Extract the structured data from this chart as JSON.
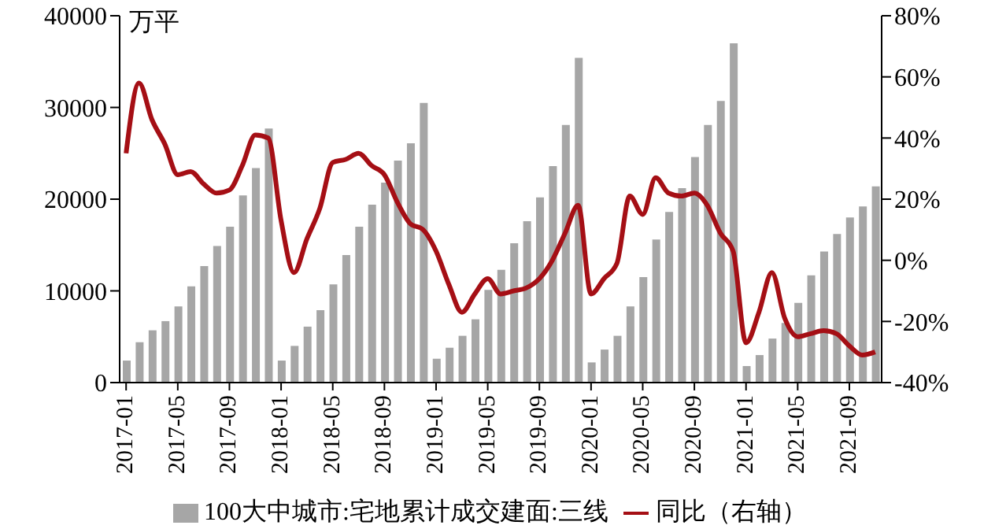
{
  "chart_data": {
    "type": "bar",
    "ylabel": "万平",
    "categories": [
      "2017-01",
      null,
      null,
      null,
      "2017-05",
      null,
      null,
      null,
      "2017-09",
      null,
      null,
      null,
      "2018-01",
      null,
      null,
      null,
      "2018-05",
      null,
      null,
      null,
      "2018-09",
      null,
      null,
      null,
      "2019-01",
      null,
      null,
      null,
      "2019-05",
      null,
      null,
      null,
      "2019-09",
      null,
      null,
      null,
      "2020-01",
      null,
      null,
      null,
      "2020-05",
      null,
      null,
      null,
      "2020-09",
      null,
      null,
      null,
      "2021-01",
      null,
      null,
      null,
      "2021-05",
      null,
      null,
      null,
      "2021-09",
      null,
      null
    ],
    "series": [
      {
        "name": "100大中城市:宅地累计成交建面:三线",
        "color": "#a6a6a6",
        "values": [
          2400,
          4400,
          5700,
          6700,
          8300,
          10500,
          12700,
          14900,
          17000,
          20400,
          23400,
          27700,
          2400,
          4000,
          6100,
          7900,
          10700,
          13900,
          17000,
          19400,
          21800,
          24200,
          26100,
          30500,
          2600,
          3800,
          5100,
          6900,
          10100,
          12300,
          15200,
          17600,
          20200,
          23600,
          28100,
          35400,
          2200,
          3600,
          5100,
          8300,
          11500,
          15600,
          18600,
          21200,
          24600,
          28100,
          30700,
          37000,
          1800,
          3000,
          4800,
          6500,
          8700,
          11700,
          14300,
          16200,
          18000,
          19200,
          21400
        ]
      },
      {
        "name": "同比（右轴）",
        "type": "line",
        "axis": "y2",
        "color": "#a50f15",
        "values": [
          35,
          58,
          46,
          38,
          28,
          29,
          25,
          22,
          23,
          31,
          41,
          40,
          13,
          -4,
          7,
          17,
          32,
          33,
          35,
          31,
          28,
          19,
          12,
          10,
          3,
          -8,
          -17,
          -11,
          -6,
          -11,
          -10,
          -9,
          -6,
          0,
          9,
          18,
          -11,
          -6,
          -1,
          21,
          15,
          27,
          22,
          21,
          22,
          18,
          9,
          3,
          -27,
          -17,
          -4,
          -19,
          -25,
          -24,
          -23,
          -24,
          -28,
          -31,
          -30
        ]
      }
    ],
    "ylim": [
      0,
      40000
    ],
    "yticks": [
      0,
      10000,
      20000,
      30000,
      40000
    ],
    "y2lim": [
      -40,
      80
    ],
    "y2ticks": [
      {
        "value": -40,
        "label": "-40%"
      },
      {
        "value": -20,
        "label": "-20%"
      },
      {
        "value": 0,
        "label": "0%"
      },
      {
        "value": 20,
        "label": "20%"
      },
      {
        "value": 40,
        "label": "40%"
      },
      {
        "value": 60,
        "label": "60%"
      },
      {
        "value": 80,
        "label": "80%"
      }
    ],
    "legend": "bottom",
    "grid": false,
    "marker": "none",
    "line_style": "solid"
  }
}
